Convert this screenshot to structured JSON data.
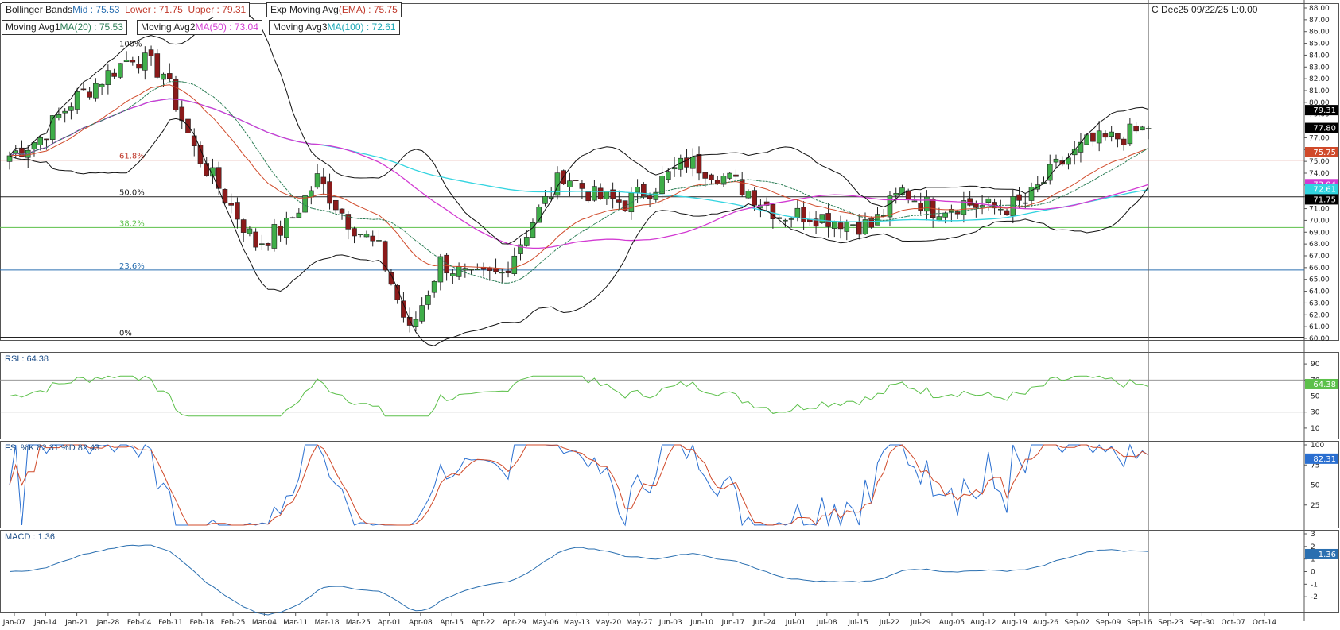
{
  "header": {
    "contract_readout": "C Dec25 09/22/25 L:0.00"
  },
  "legends": {
    "bollinger": {
      "name": "Bollinger Bands",
      "mid_label": "Mid : 75.53",
      "lower_label": "Lower : 71.75",
      "upper_label": "Upper : 79.31"
    },
    "ema": {
      "name": "Exp Moving Avg",
      "value_label": "(EMA) : 75.75"
    },
    "ma1": {
      "name": "Moving Avg1",
      "value_label": "MA(20) : 75.53"
    },
    "ma2": {
      "name": "Moving Avg2",
      "value_label": "MA(50) : 73.04"
    },
    "ma3": {
      "name": "Moving Avg3",
      "value_label": "MA(100) : 72.61"
    }
  },
  "panels": {
    "rsi_label": "RSI : 64.38",
    "fsi_label": "FSI %K 82.31 %D 82.43",
    "macd_label": "MACD : 1.36"
  },
  "colors": {
    "up_candle": "#3fae49",
    "down_candle": "#8b1a1a",
    "bollinger": "#111111",
    "ema": "#d04a2a",
    "ma20": "#2b7d55",
    "ma50": "#d23ad2",
    "ma100": "#33d4e0",
    "rsi": "#5cc04a",
    "fsi_k": "#2a6fd0",
    "fsi_d": "#d04a2a",
    "macd": "#2a6fb0",
    "fib_618": "#c0392b",
    "fib_382": "#5cc04a",
    "fib_236": "#2a6fb0"
  },
  "chart_data": {
    "type": "candlestick",
    "price_axis": {
      "min": 60,
      "max": 88,
      "ticks": [
        "60.00",
        "61.00",
        "62.00",
        "63.00",
        "64.00",
        "65.00",
        "66.00",
        "67.00",
        "68.00",
        "69.00",
        "70.00",
        "71.00",
        "72.00",
        "73.00",
        "74.00",
        "75.00",
        "76.00",
        "77.00",
        "78.00",
        "79.00",
        "80.00",
        "81.00",
        "82.00",
        "83.00",
        "84.00",
        "85.00",
        "86.00",
        "87.00",
        "88.00"
      ]
    },
    "x_labels": [
      "Jan-07",
      "Jan-14",
      "Jan-21",
      "Jan-28",
      "Feb-04",
      "Feb-11",
      "Feb-18",
      "Feb-25",
      "Mar-04",
      "Mar-11",
      "Mar-18",
      "Mar-25",
      "Apr-01",
      "Apr-08",
      "Apr-15",
      "Apr-22",
      "Apr-29",
      "May-06",
      "May-13",
      "May-20",
      "May-27",
      "Jun-03",
      "Jun-10",
      "Jun-17",
      "Jun-24",
      "Jul-01",
      "Jul-08",
      "Jul-15",
      "Jul-22",
      "Jul-29",
      "Aug-05",
      "Aug-12",
      "Aug-19",
      "Aug-26",
      "Sep-02",
      "Sep-09",
      "Sep-16",
      "Sep-23",
      "Sep-30",
      "Oct-07",
      "Oct-14"
    ],
    "fibonacci": [
      {
        "label": "100%",
        "value": 84.6
      },
      {
        "label": "61.8%",
        "value": 75.1
      },
      {
        "label": "50.0%",
        "value": 72.0
      },
      {
        "label": "38.2%",
        "value": 69.4
      },
      {
        "label": "23.6%",
        "value": 65.8
      },
      {
        "label": "0%",
        "value": 60.1
      }
    ],
    "price_key_points": [
      {
        "date": "Jan-07",
        "close": 75.5
      },
      {
        "date": "Jan-14",
        "close": 77.0
      },
      {
        "date": "Jan-21",
        "close": 80.0
      },
      {
        "date": "Jan-28",
        "close": 82.0
      },
      {
        "date": "Feb-04",
        "close": 84.0
      },
      {
        "date": "Feb-11",
        "close": 82.5
      },
      {
        "date": "Feb-18",
        "close": 76.0
      },
      {
        "date": "Feb-25",
        "close": 72.0
      },
      {
        "date": "Mar-04",
        "close": 68.0
      },
      {
        "date": "Mar-11",
        "close": 69.5
      },
      {
        "date": "Mar-18",
        "close": 73.5
      },
      {
        "date": "Mar-25",
        "close": 70.0
      },
      {
        "date": "Apr-01",
        "close": 67.5
      },
      {
        "date": "Apr-08",
        "close": 60.5
      },
      {
        "date": "Apr-15",
        "close": 66.5
      },
      {
        "date": "Apr-22",
        "close": 65.0
      },
      {
        "date": "Apr-29",
        "close": 65.5
      },
      {
        "date": "May-06",
        "close": 70.0
      },
      {
        "date": "May-13",
        "close": 74.0
      },
      {
        "date": "May-20",
        "close": 72.0
      },
      {
        "date": "May-27",
        "close": 71.5
      },
      {
        "date": "Jun-03",
        "close": 73.0
      },
      {
        "date": "Jun-10",
        "close": 75.0
      },
      {
        "date": "Jun-17",
        "close": 74.0
      },
      {
        "date": "Jun-24",
        "close": 72.5
      },
      {
        "date": "Jul-01",
        "close": 70.5
      },
      {
        "date": "Jul-08",
        "close": 70.5
      },
      {
        "date": "Jul-15",
        "close": 70.0
      },
      {
        "date": "Jul-22",
        "close": 69.5
      },
      {
        "date": "Jul-29",
        "close": 72.5
      },
      {
        "date": "Aug-05",
        "close": 71.0
      },
      {
        "date": "Aug-12",
        "close": 71.5
      },
      {
        "date": "Aug-19",
        "close": 71.0
      },
      {
        "date": "Aug-26",
        "close": 71.5
      },
      {
        "date": "Sep-02",
        "close": 74.5
      },
      {
        "date": "Sep-09",
        "close": 76.5
      },
      {
        "date": "Sep-16",
        "close": 77.0
      },
      {
        "date": "Sep-23",
        "close": 77.8
      }
    ],
    "right_axis_badges": [
      {
        "text": "79.31",
        "value": 79.31,
        "color": "#000000"
      },
      {
        "text": "77.80",
        "value": 77.8,
        "color": "#000000"
      },
      {
        "text": "75.75",
        "value": 75.75,
        "color": "#d04a2a"
      },
      {
        "text": "73.04",
        "value": 73.04,
        "color": "#d23ad2"
      },
      {
        "text": "72.61",
        "value": 72.61,
        "color": "#33d4e0"
      },
      {
        "text": "71.75",
        "value": 71.75,
        "color": "#000000"
      }
    ],
    "rsi": {
      "axis_ticks": [
        "90",
        "70",
        "50",
        "30",
        "10"
      ],
      "overbought": 70,
      "mid": 50,
      "oversold": 30,
      "last": 64.38
    },
    "fsi": {
      "axis_ticks": [
        "100",
        "75",
        "50",
        "25"
      ],
      "k_last": 82.31,
      "d_last": 82.43
    },
    "macd": {
      "axis_ticks": [
        "3",
        "2",
        "1",
        "0",
        "-1",
        "-2"
      ],
      "last": 1.36
    }
  }
}
